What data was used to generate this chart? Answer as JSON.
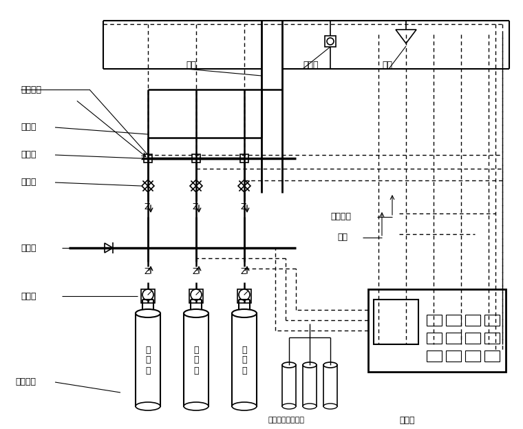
{
  "bg_color": "#ffffff",
  "line_color": "#000000",
  "dashed_color": "#555555",
  "label_fontsize": 9,
  "chinese_font": "SimSun",
  "labels": {
    "pressure_switch": "压力开关",
    "pipe": "管道",
    "detector": "探测器",
    "nozzle": "喷头",
    "selector_valve": "选择阀",
    "manifold": "汇集管",
    "safety_valve": "安全阀",
    "check_valve": "单向阀",
    "container_valve": "容器阀",
    "storage_vessel": "储存容器",
    "linked_control": "联动控制",
    "alarm": "报警",
    "start_cylinder": "启动气瓶（氮气）",
    "controller": "控制器",
    "fire_agent": "灭\n火\n剂"
  }
}
